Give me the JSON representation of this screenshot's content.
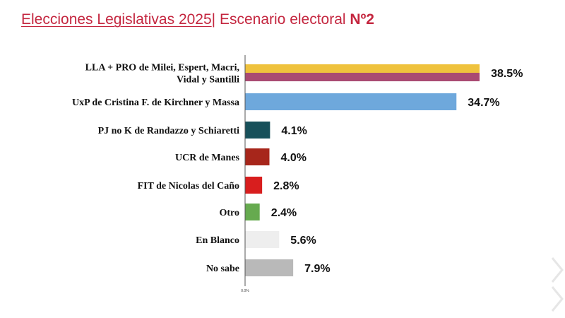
{
  "title": {
    "part1": "Elecciones Legislativas 2025",
    "separator": "|",
    "part2": " Escenario electoral ",
    "number": "Nº2"
  },
  "chart_data": {
    "type": "bar",
    "orientation": "horizontal",
    "title": "Elecciones Legislativas 2025| Escenario electoral Nº2",
    "xlabel": "",
    "ylabel": "",
    "xlim": [
      0,
      40
    ],
    "x_ticks": [
      "0.0%"
    ],
    "grid": false,
    "legend": "none",
    "categories": [
      [
        "LLA + PRO de Milei, Espert, Macri,",
        "Vidal y Santilli"
      ],
      [
        "UxP de Cristina F. de Kirchner y Massa"
      ],
      [
        "PJ no K de Randazzo y Schiaretti"
      ],
      [
        "UCR de Manes"
      ],
      [
        "FIT de Nicolas del Caño"
      ],
      [
        "Otro"
      ],
      [
        "En Blanco"
      ],
      [
        "No sabe"
      ]
    ],
    "values": [
      38.5,
      34.7,
      4.1,
      4.0,
      2.8,
      2.4,
      5.6,
      7.9
    ],
    "value_labels": [
      "38.5%",
      "34.7%",
      "4.1%",
      "4.0%",
      "2.8%",
      "2.4%",
      "5.6%",
      "7.9%"
    ],
    "colors": [
      [
        "#efc23d",
        "#a94a72"
      ],
      [
        "#6ea8dc"
      ],
      [
        "#17505a"
      ],
      [
        "#a7261b"
      ],
      [
        "#d81e1e"
      ],
      [
        "#66aa4f"
      ],
      [
        "#eeeeee"
      ],
      [
        "#b9b9b9"
      ]
    ]
  }
}
